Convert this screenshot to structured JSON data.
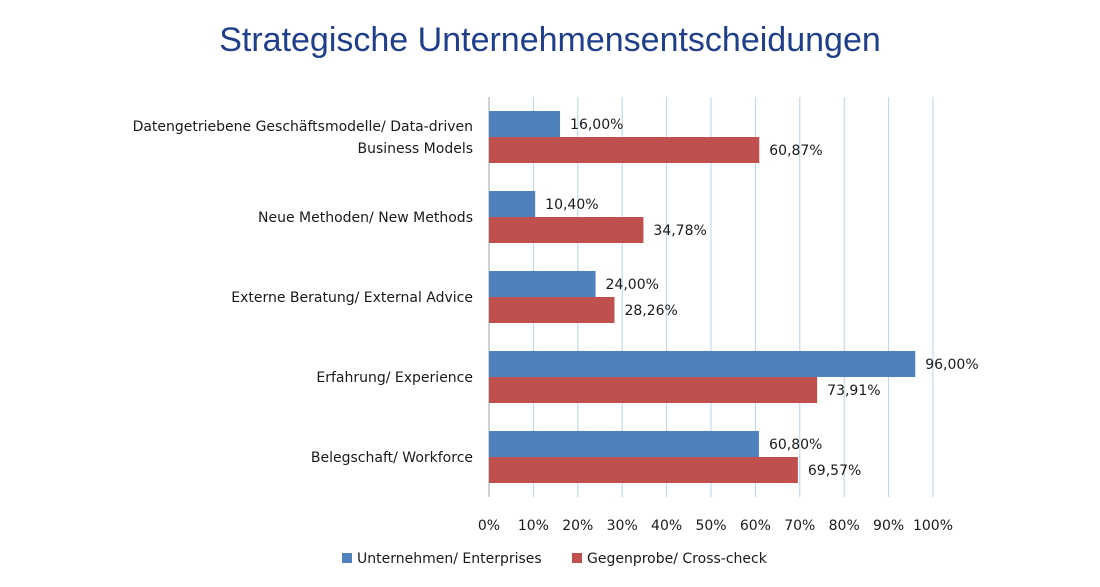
{
  "chart_data": {
    "type": "bar",
    "orientation": "horizontal",
    "title": "Strategische Unternehmensentscheidungen",
    "categories": [
      [
        "Datengetriebene Geschäftsmodelle/ Data-driven",
        "Business Models"
      ],
      [
        "Neue Methoden/ New Methods"
      ],
      [
        "Externe Beratung/ External Advice"
      ],
      [
        "Erfahrung/ Experience"
      ],
      [
        "Belegschaft/ Workforce"
      ]
    ],
    "series": [
      {
        "name": "Unternehmen/ Enterprises",
        "color": "#4f81bd",
        "values": [
          16.0,
          10.4,
          24.0,
          96.0,
          60.8
        ],
        "labels": [
          "16,00%",
          "10,40%",
          "24,00%",
          "96,00%",
          "60,80%"
        ]
      },
      {
        "name": "Gegenprobe/ Cross-check",
        "color": "#c0504d",
        "values": [
          60.87,
          34.78,
          28.26,
          73.91,
          69.57
        ],
        "labels": [
          "60,87%",
          "34,78%",
          "28,26%",
          "73,91%",
          "69,57%"
        ]
      }
    ],
    "xlim": [
      0,
      100
    ],
    "xticks": [
      "0%",
      "10%",
      "20%",
      "30%",
      "40%",
      "50%",
      "60%",
      "70%",
      "80%",
      "90%",
      "100%"
    ],
    "grid": true,
    "legend_position": "bottom"
  }
}
